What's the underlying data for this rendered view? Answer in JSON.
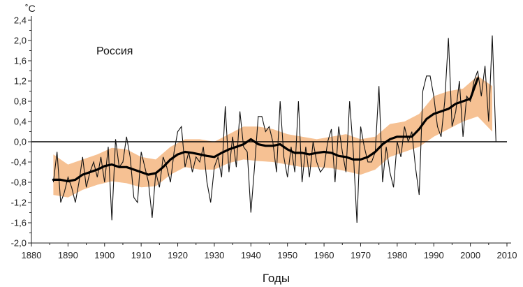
{
  "chart_data": {
    "type": "line",
    "title": "",
    "region_label": "Россия",
    "ylabel": "˚С",
    "xlabel": "Годы",
    "xlim": [
      1880,
      2010
    ],
    "ylim": [
      -2.0,
      2.4
    ],
    "x_ticks": [
      1880,
      1890,
      1900,
      1910,
      1920,
      1930,
      1940,
      1950,
      1960,
      1970,
      1980,
      1990,
      2000,
      2010
    ],
    "y_ticks": [
      2.4,
      2.0,
      1.6,
      1.2,
      0.8,
      0.4,
      0.0,
      -0.4,
      -0.8,
      -1.2,
      -1.6,
      -2.0
    ],
    "y_tick_labels": [
      "2,4",
      "2,0",
      "1,6",
      "1,2",
      "0,8",
      "0,4",
      "0,0",
      "-0,4",
      "-0,8",
      "-1,2",
      "-1,6",
      "-2,0"
    ],
    "x_tick_labels": [
      "1880",
      "1890",
      "1900",
      "1910",
      "1920",
      "1930",
      "1940",
      "1950",
      "1960",
      "1970",
      "1980",
      "1990",
      "2000",
      "2010"
    ],
    "reference_line": 0.0,
    "grid": false,
    "colors": {
      "annual": "#111111",
      "smoothed": "#000000",
      "band": "#f6c193",
      "zero_line": "#000000",
      "axis": "#222222"
    },
    "series": [
      {
        "role": "annual",
        "x": [
          1886,
          1887,
          1888,
          1889,
          1890,
          1891,
          1892,
          1893,
          1894,
          1895,
          1896,
          1897,
          1898,
          1899,
          1900,
          1901,
          1902,
          1903,
          1904,
          1905,
          1906,
          1907,
          1908,
          1909,
          1910,
          1911,
          1912,
          1913,
          1914,
          1915,
          1916,
          1917,
          1918,
          1919,
          1920,
          1921,
          1922,
          1923,
          1924,
          1925,
          1926,
          1927,
          1928,
          1929,
          1930,
          1931,
          1932,
          1933,
          1934,
          1935,
          1936,
          1937,
          1938,
          1939,
          1940,
          1941,
          1942,
          1943,
          1944,
          1945,
          1946,
          1947,
          1948,
          1949,
          1950,
          1951,
          1952,
          1953,
          1954,
          1955,
          1956,
          1957,
          1958,
          1959,
          1960,
          1961,
          1962,
          1963,
          1964,
          1965,
          1966,
          1967,
          1968,
          1969,
          1970,
          1971,
          1972,
          1973,
          1974,
          1975,
          1976,
          1977,
          1978,
          1979,
          1980,
          1981,
          1982,
          1983,
          1984,
          1985,
          1986,
          1987,
          1988,
          1989,
          1990,
          1991,
          1992,
          1993,
          1994,
          1995,
          1996,
          1997,
          1998,
          1999,
          2000,
          2001,
          2002,
          2003,
          2004,
          2005,
          2006,
          2007
        ],
        "y": [
          -0.8,
          -0.2,
          -1.2,
          -1.0,
          -0.7,
          -0.9,
          -1.2,
          -0.8,
          -0.3,
          -0.9,
          -0.6,
          -0.4,
          -0.7,
          -0.3,
          -0.8,
          -0.1,
          -1.55,
          0.05,
          -0.5,
          -0.4,
          0.1,
          -0.3,
          -1.1,
          -1.2,
          -0.2,
          -0.5,
          -0.8,
          -1.5,
          -0.6,
          -0.9,
          -0.3,
          -0.5,
          -0.8,
          -0.2,
          0.2,
          0.3,
          -0.5,
          -0.2,
          -0.6,
          -0.3,
          -0.4,
          -0.1,
          -0.8,
          -1.2,
          -0.5,
          -0.3,
          -0.7,
          0.7,
          -0.6,
          0.1,
          -0.5,
          0.6,
          -0.1,
          -0.2,
          -1.4,
          -0.5,
          0.5,
          0.5,
          0.2,
          0.3,
          0.0,
          -0.6,
          0.8,
          -0.3,
          -0.7,
          -0.1,
          -0.6,
          0.8,
          -0.8,
          -0.1,
          -0.7,
          0.0,
          -0.4,
          -0.6,
          -0.5,
          0.0,
          0.25,
          -0.8,
          0.3,
          -0.2,
          -0.6,
          0.8,
          -0.2,
          -1.6,
          0.3,
          -0.1,
          -0.4,
          -0.4,
          -0.2,
          1.1,
          -0.8,
          -0.1,
          -0.6,
          -0.9,
          0.0,
          -0.3,
          0.3,
          0.0,
          0.2,
          -0.5,
          -1.05,
          1.0,
          1.3,
          1.3,
          0.9,
          0.3,
          0.1,
          0.8,
          2.05,
          0.3,
          0.6,
          1.2,
          0.1,
          0.9,
          0.8,
          1.2,
          1.4,
          0.9,
          1.5,
          0.4,
          2.1,
          0.0
        ]
      },
      {
        "role": "smoothed",
        "x": [
          1886,
          1888,
          1890,
          1892,
          1894,
          1896,
          1898,
          1900,
          1902,
          1904,
          1906,
          1908,
          1910,
          1912,
          1914,
          1916,
          1918,
          1920,
          1922,
          1924,
          1926,
          1928,
          1930,
          1932,
          1934,
          1936,
          1938,
          1940,
          1942,
          1944,
          1946,
          1948,
          1950,
          1952,
          1954,
          1956,
          1958,
          1960,
          1962,
          1964,
          1966,
          1968,
          1970,
          1972,
          1974,
          1976,
          1978,
          1980,
          1982,
          1984,
          1986,
          1988,
          1990,
          1992,
          1994,
          1996,
          1998,
          2000,
          2002
        ],
        "y": [
          -0.75,
          -0.75,
          -0.78,
          -0.75,
          -0.65,
          -0.6,
          -0.55,
          -0.48,
          -0.45,
          -0.5,
          -0.5,
          -0.55,
          -0.6,
          -0.65,
          -0.62,
          -0.5,
          -0.35,
          -0.25,
          -0.2,
          -0.22,
          -0.25,
          -0.28,
          -0.3,
          -0.22,
          -0.15,
          -0.1,
          -0.05,
          0.05,
          -0.05,
          -0.08,
          -0.08,
          -0.05,
          -0.15,
          -0.22,
          -0.22,
          -0.25,
          -0.22,
          -0.2,
          -0.22,
          -0.28,
          -0.3,
          -0.35,
          -0.35,
          -0.3,
          -0.2,
          -0.05,
          0.05,
          0.1,
          0.1,
          0.1,
          0.25,
          0.45,
          0.55,
          0.6,
          0.65,
          0.75,
          0.8,
          0.85,
          1.25
        ]
      },
      {
        "role": "band",
        "x": [
          1886,
          1890,
          1894,
          1898,
          1902,
          1906,
          1910,
          1914,
          1918,
          1922,
          1926,
          1930,
          1934,
          1938,
          1942,
          1946,
          1950,
          1954,
          1958,
          1962,
          1966,
          1970,
          1974,
          1978,
          1982,
          1986,
          1990,
          1994,
          1998,
          2002,
          2006
        ],
        "lower": [
          -1.05,
          -1.1,
          -0.95,
          -0.85,
          -0.78,
          -0.82,
          -0.9,
          -0.88,
          -0.65,
          -0.5,
          -0.55,
          -0.55,
          -0.42,
          -0.35,
          -0.38,
          -0.4,
          -0.45,
          -0.5,
          -0.5,
          -0.52,
          -0.58,
          -0.65,
          -0.55,
          -0.3,
          -0.2,
          -0.1,
          0.1,
          0.25,
          0.4,
          0.5,
          0.2
        ],
        "upper": [
          -0.25,
          -0.45,
          -0.35,
          -0.25,
          -0.12,
          -0.15,
          -0.3,
          -0.35,
          -0.1,
          0.05,
          0.05,
          0.0,
          0.15,
          0.3,
          0.3,
          0.25,
          0.15,
          0.1,
          0.05,
          0.1,
          0.15,
          0.05,
          0.1,
          0.35,
          0.4,
          0.55,
          0.9,
          1.0,
          1.05,
          1.3,
          1.1
        ]
      }
    ]
  }
}
